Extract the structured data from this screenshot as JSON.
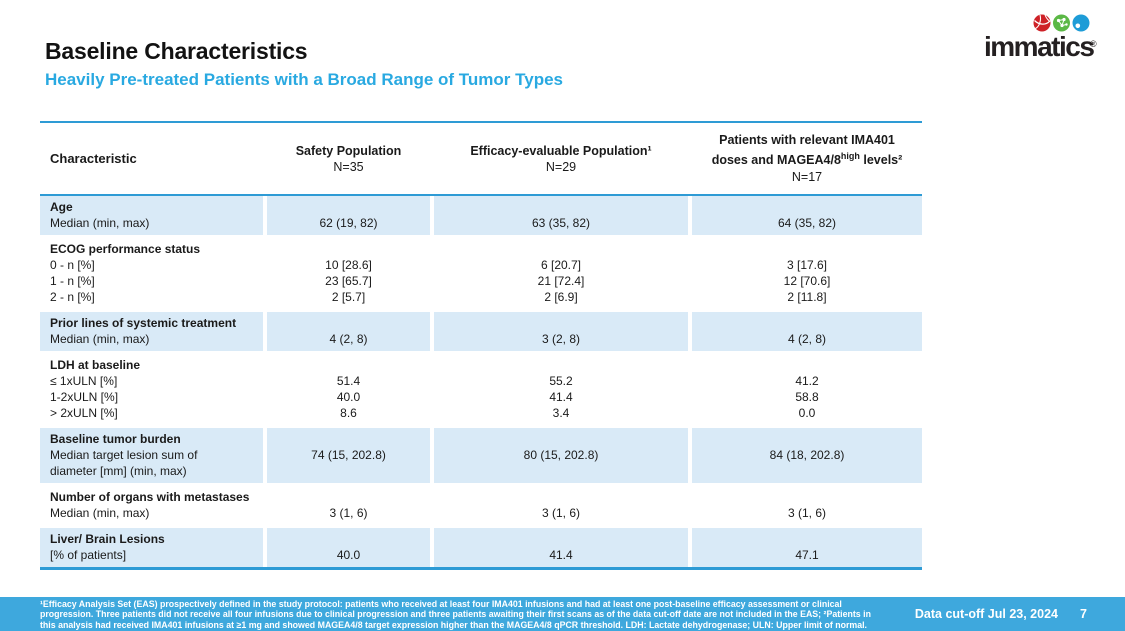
{
  "header": {
    "title": "Baseline Characteristics",
    "subtitle": "Heavily Pre-treated Patients with a Broad Range of Tumor Types",
    "logo_text": "immatics",
    "logo_reg": "®"
  },
  "colors": {
    "accent_blue": "#2E9BD5",
    "subtitle_blue": "#29A9E1",
    "row_shade": "#D9EAF7",
    "footer_bar": "#3EA8DD",
    "logo_red": "#CE2127",
    "logo_green": "#5BB846",
    "logo_blue": "#1E9CD7"
  },
  "table": {
    "columns": [
      {
        "label": "Characteristic"
      },
      {
        "line1": "Safety Population",
        "n": "N=35"
      },
      {
        "line1": "Efficacy-evaluable Population¹",
        "n": "N=29"
      },
      {
        "line1": "Patients with relevant IMA401",
        "line2_pre": "doses and MAGEA4/8",
        "line2_sup": "high",
        "line2_post": " levels²",
        "n": "N=17"
      }
    ],
    "rows": [
      {
        "shaded": true,
        "label_lines": [
          {
            "text": "Age",
            "bold": true
          },
          {
            "text": "Median (min, max)",
            "bold": false
          }
        ],
        "cols": [
          [
            "",
            "62 (19, 82)"
          ],
          [
            "",
            "63 (35, 82)"
          ],
          [
            "",
            "64 (35, 82)"
          ]
        ]
      },
      {
        "shaded": false,
        "label_lines": [
          {
            "text": "ECOG performance status",
            "bold": true
          },
          {
            "text": "0 - n [%]",
            "bold": false
          },
          {
            "text": "1 - n [%]",
            "bold": false
          },
          {
            "text": "2 - n [%]",
            "bold": false
          }
        ],
        "cols": [
          [
            "",
            "10 [28.6]",
            "23 [65.7]",
            "2 [5.7]"
          ],
          [
            "",
            "6 [20.7]",
            "21 [72.4]",
            "2 [6.9]"
          ],
          [
            "",
            "3 [17.6]",
            "12 [70.6]",
            "2 [11.8]"
          ]
        ]
      },
      {
        "shaded": true,
        "label_lines": [
          {
            "text": "Prior lines of systemic treatment",
            "bold": true
          },
          {
            "text": "Median (min, max)",
            "bold": false
          }
        ],
        "cols": [
          [
            "",
            "4 (2, 8)"
          ],
          [
            "",
            "3 (2, 8)"
          ],
          [
            "",
            "4 (2, 8)"
          ]
        ]
      },
      {
        "shaded": false,
        "label_lines": [
          {
            "text": "LDH at baseline",
            "bold": true
          },
          {
            "text": "≤ 1xULN [%]",
            "bold": false
          },
          {
            "text": " 1-2xULN [%]",
            "bold": false
          },
          {
            "text": "> 2xULN [%]",
            "bold": false
          }
        ],
        "cols": [
          [
            "",
            "51.4",
            "40.0",
            "8.6"
          ],
          [
            "",
            "55.2",
            "41.4",
            "3.4"
          ],
          [
            "",
            "41.2",
            "58.8",
            "0.0"
          ]
        ]
      },
      {
        "shaded": true,
        "label_lines": [
          {
            "text": "Baseline tumor burden",
            "bold": true
          },
          {
            "text": "Median target lesion sum of",
            "bold": false
          },
          {
            "text": "diameter [mm] (min, max)",
            "bold": false
          }
        ],
        "cols": [
          [
            "",
            "74 (15, 202.8)",
            ""
          ],
          [
            "",
            "80 (15, 202.8)",
            ""
          ],
          [
            "",
            "84 (18, 202.8)",
            ""
          ]
        ]
      },
      {
        "shaded": false,
        "label_lines": [
          {
            "text": "Number of organs with metastases",
            "bold": true
          },
          {
            "text": "Median (min, max)",
            "bold": false
          }
        ],
        "cols": [
          [
            "",
            "3 (1, 6)"
          ],
          [
            "",
            "3 (1, 6)"
          ],
          [
            "",
            "3 (1, 6)"
          ]
        ]
      },
      {
        "shaded": true,
        "label_lines": [
          {
            "text": "Liver/ Brain Lesions",
            "bold": true
          },
          {
            "text": "[% of patients]",
            "bold": false
          }
        ],
        "cols": [
          [
            "",
            "40.0"
          ],
          [
            "",
            "41.4"
          ],
          [
            "",
            "47.1"
          ]
        ]
      }
    ]
  },
  "footer": {
    "footnote_lines": [
      "¹Efficacy Analysis Set (EAS) prospectively defined in the study protocol: patients who received at least four IMA401 infusions and had at least one post-baseline efficacy assessment or clinical",
      "progression. Three patients did not receive all four infusions due to clinical progression and three patients awaiting their first scans as of the data cut-off date are not included in the EAS; ²Patients in",
      "this analysis had received IMA401 infusions at ≥1 mg and showed MAGEA4/8 target expression higher than the MAGEA4/8 qPCR threshold. LDH: Lactate dehydrogenase; ULN: Upper limit of normal."
    ],
    "data_cutoff": "Data cut-off Jul 23, 2024",
    "page_number": "7"
  }
}
